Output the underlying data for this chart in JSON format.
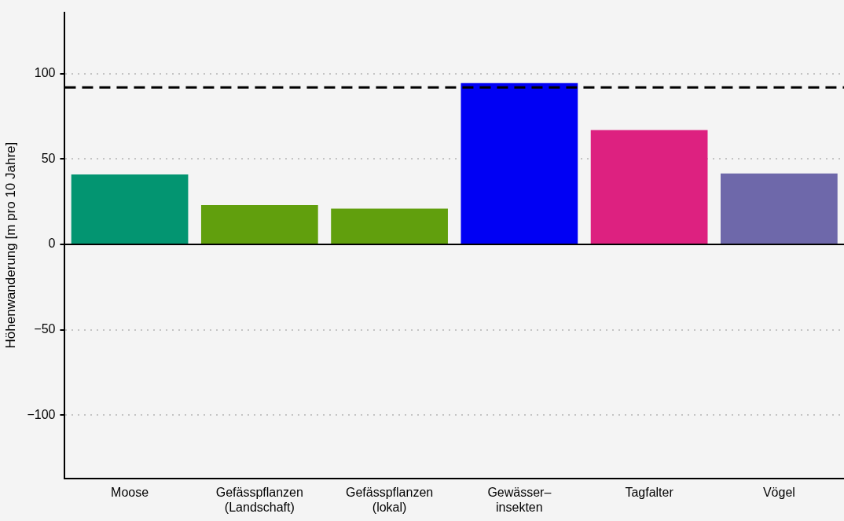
{
  "chart_data": {
    "type": "bar",
    "ylabel": "Höhenwanderung [m pro 10 Jahre]",
    "categories": [
      "Moose",
      "Gefässpflanzen\n(Landschaft)",
      "Gefässpflanzen\n(lokal)",
      "Gewässer–\ninsekten",
      "Tagfalter",
      "Vögel"
    ],
    "values": [
      41,
      23,
      21,
      94.5,
      67,
      41.5
    ],
    "colors": [
      "#039571",
      "#619f0d",
      "#619f0d",
      "#0000f4",
      "#dd2180",
      "#6e68aa"
    ],
    "ylim": [
      -137,
      136
    ],
    "yticks": [
      {
        "value": -100,
        "label": "−100"
      },
      {
        "value": -50,
        "label": "−50"
      },
      0,
      50,
      100
    ],
    "grid": "y",
    "ref_lines": [
      {
        "axis": "y",
        "value": 92,
        "line_style": "dashed",
        "color": "#000000"
      },
      {
        "axis": "y",
        "value": 0,
        "line_style": "solid",
        "color": "#000000"
      }
    ]
  }
}
